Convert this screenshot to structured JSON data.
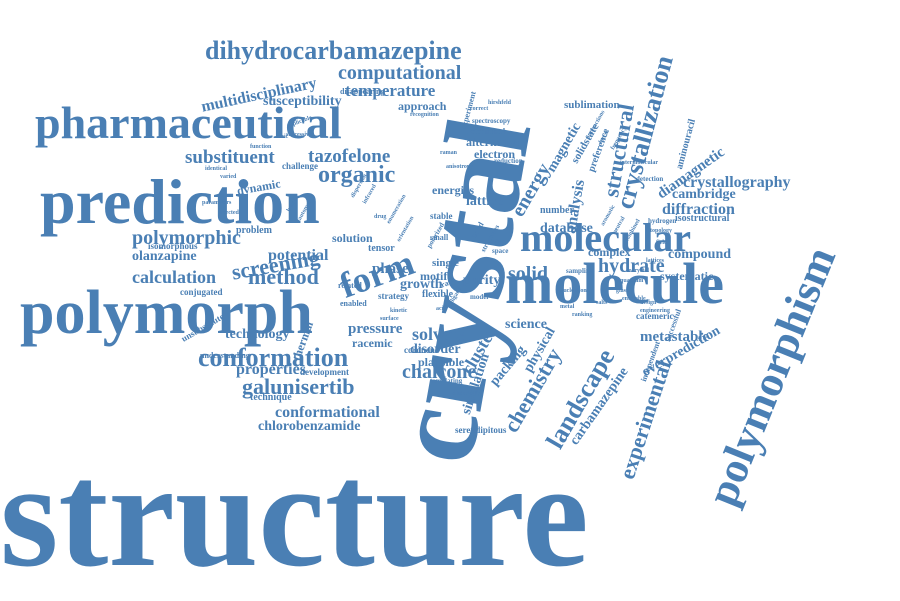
{
  "theme": {
    "word_color": "#4a7fb4",
    "background": "#ffffff"
  },
  "words": [
    "structure",
    "crystal",
    "polymorph",
    "prediction",
    "pharmaceutical",
    "molecule",
    "molecular",
    "polymorphism",
    "form",
    "crystallization",
    "dihydrocarbamazepine",
    "computational",
    "multidisciplinary",
    "temperature",
    "susceptibility",
    "substituent",
    "tazofelone",
    "organic",
    "dynamic",
    "polymorphic",
    "screening",
    "potential",
    "olanzapine",
    "calculation",
    "method",
    "conformation",
    "properties",
    "galunisertib",
    "conformational",
    "chlorobenzamide",
    "technique",
    "technology",
    "thermal",
    "pressure",
    "racemic",
    "solvate",
    "disorder",
    "plausible",
    "chalcone",
    "simulation",
    "cluster",
    "packing",
    "physical",
    "chemistry",
    "landscape",
    "experimental",
    "carbamazepine",
    "metastable",
    "overprediction",
    "independent",
    "catemeric",
    "successful",
    "compound",
    "systematic",
    "hydrate",
    "solid",
    "science",
    "diffraction",
    "cambridge",
    "crystallography",
    "diamagnetic",
    "aminouracil",
    "isostructural",
    "analysis",
    "database",
    "structural",
    "energy",
    "magnetic",
    "solidstate",
    "preference",
    "sublimation",
    "alternative",
    "electron",
    "determined",
    "approach",
    "experiment",
    "lattice",
    "energies",
    "phase",
    "purity",
    "growth",
    "flexible",
    "stable",
    "motif",
    "single",
    "tensor",
    "solution",
    "complex",
    "number",
    "serendipitous",
    "challenge",
    "problem",
    "isomorphous",
    "conjugated",
    "unsubstituted",
    "understanding",
    "development",
    "related",
    "enabled",
    "strategy",
    "disappearing",
    "spectroscopy",
    "rate",
    "small",
    "reduction",
    "coronene",
    "hydrogen",
    "bond",
    "polarized",
    "detection",
    "sampling",
    "structures",
    "templating",
    "discovery",
    "model",
    "space",
    "stage",
    "ligand",
    "acid",
    "parameters",
    "directed",
    "function",
    "ionic",
    "successive",
    "identical",
    "varied",
    "correct",
    "recognition",
    "drug",
    "enumeration",
    "orientation",
    "nucleation",
    "salts",
    "glass",
    "metal",
    "ranking",
    "applicable",
    "hirshfeld",
    "aromatic",
    "neutral",
    "combined",
    "benzoic",
    "tautomer",
    "interactions",
    "forces",
    "frequency",
    "dispersion",
    "infrared",
    "raman",
    "anisotropy",
    "surface",
    "kinetic",
    "intermolecular",
    "cocrystal",
    "quantum",
    "ensemble",
    "design",
    "engineering",
    "topology",
    "field",
    "lattices"
  ]
}
